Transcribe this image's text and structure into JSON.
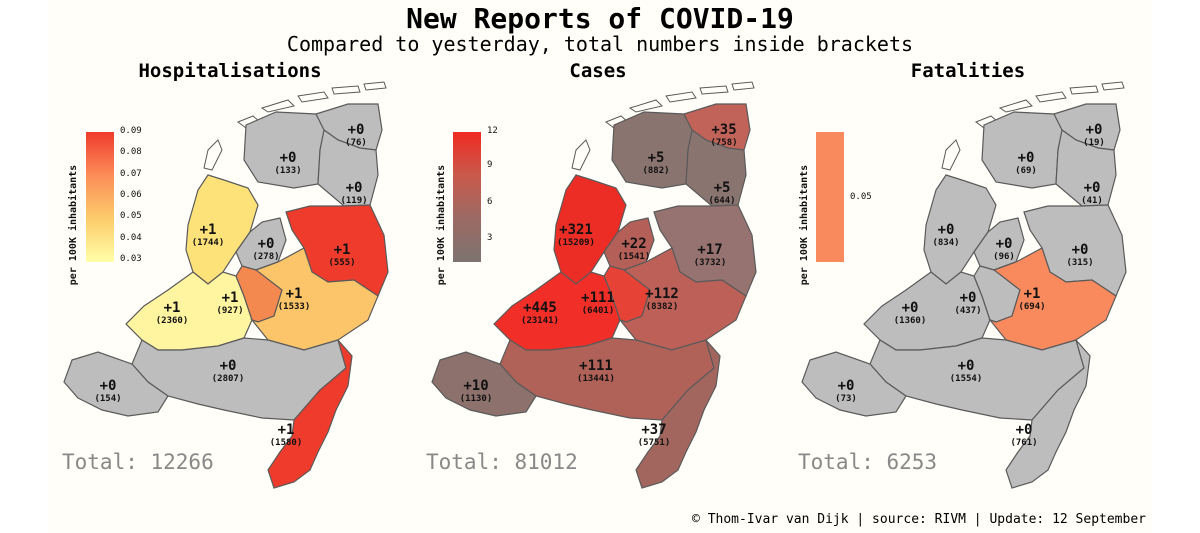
{
  "title": "New Reports of COVID-19",
  "subtitle": "Compared to yesterday, total numbers inside brackets",
  "footer": "© Thom-Ivar van Dijk | source: RIVM | Update: 12 September",
  "colorbar_label": "per 100K inhabitants",
  "colors": {
    "no_change": "#bdbdbd",
    "border": "#5a5a5a",
    "background": "#fffef8"
  },
  "panels": [
    {
      "title": "Hospitalisations",
      "total": "Total: 12266",
      "ticks": [
        "0.09",
        "0.08",
        "0.07",
        "0.06",
        "0.05",
        "0.04",
        "0.03"
      ],
      "colorbar_gradient": [
        "#ef3b2c",
        "#fc8d59",
        "#fdcc6b",
        "#ffffa8"
      ],
      "regions": {
        "groningen": {
          "new": "+0",
          "total": "(76)"
        },
        "friesland": {
          "new": "+0",
          "total": "(133)"
        },
        "drenthe": {
          "new": "+0",
          "total": "(119)"
        },
        "noord_holland": {
          "new": "+1",
          "total": "(1744)"
        },
        "flevoland": {
          "new": "+0",
          "total": "(278)"
        },
        "overijssel": {
          "new": "+1",
          "total": "(555)"
        },
        "zuid_holland": {
          "new": "+1",
          "total": "(2360)"
        },
        "utrecht": {
          "new": "+1",
          "total": "(927)"
        },
        "gelderland": {
          "new": "+1",
          "total": "(1533)"
        },
        "noord_brabant": {
          "new": "+0",
          "total": "(2807)"
        },
        "zeeland": {
          "new": "+0",
          "total": "(154)"
        },
        "limburg": {
          "new": "+1",
          "total": "(1580)"
        }
      }
    },
    {
      "title": "Cases",
      "total": "Total: 81012",
      "ticks": [
        "12",
        "9",
        "6",
        "3"
      ],
      "colorbar_gradient": [
        "#ef2b22",
        "#c95a4c",
        "#9c6a64",
        "#7d7370"
      ],
      "regions": {
        "groningen": {
          "new": "+35",
          "total": "(758)"
        },
        "friesland": {
          "new": "+5",
          "total": "(882)"
        },
        "drenthe": {
          "new": "+5",
          "total": "(644)"
        },
        "noord_holland": {
          "new": "+321",
          "total": "(15209)"
        },
        "flevoland": {
          "new": "+22",
          "total": "(1541)"
        },
        "overijssel": {
          "new": "+17",
          "total": "(3732)"
        },
        "zuid_holland": {
          "new": "+445",
          "total": "(23141)"
        },
        "utrecht": {
          "new": "+111",
          "total": "(6401)"
        },
        "gelderland": {
          "new": "+112",
          "total": "(8382)"
        },
        "noord_brabant": {
          "new": "+111",
          "total": "(13441)"
        },
        "zeeland": {
          "new": "+10",
          "total": "(1130)"
        },
        "limburg": {
          "new": "+37",
          "total": "(5751)"
        }
      }
    },
    {
      "title": "Fatalities",
      "total": "Total: 6253",
      "ticks": [
        "0.05"
      ],
      "colorbar_gradient": [
        "#f98a5e",
        "#f98a5e",
        "#f98a5e",
        "#f98a5e"
      ],
      "regions": {
        "groningen": {
          "new": "+0",
          "total": "(19)"
        },
        "friesland": {
          "new": "+0",
          "total": "(69)"
        },
        "drenthe": {
          "new": "+0",
          "total": "(41)"
        },
        "noord_holland": {
          "new": "+0",
          "total": "(834)"
        },
        "flevoland": {
          "new": "+0",
          "total": "(96)"
        },
        "overijssel": {
          "new": "+0",
          "total": "(315)"
        },
        "zuid_holland": {
          "new": "+0",
          "total": "(1360)"
        },
        "utrecht": {
          "new": "+0",
          "total": "(437)"
        },
        "gelderland": {
          "new": "+1",
          "total": "(694)"
        },
        "noord_brabant": {
          "new": "+0",
          "total": "(1554)"
        },
        "zeeland": {
          "new": "+0",
          "total": "(73)"
        },
        "limburg": {
          "new": "+0",
          "total": "(761)"
        }
      }
    }
  ],
  "region_fills": [
    {
      "groningen": "#bdbdbd",
      "friesland": "#bdbdbd",
      "drenthe": "#bdbdbd",
      "noord_holland": "#fde27a",
      "flevoland": "#bdbdbd",
      "overijssel": "#ef3b2c",
      "zuid_holland": "#fff4a0",
      "utrecht": "#f4894f",
      "gelderland": "#fcc56a",
      "noord_brabant": "#bdbdbd",
      "zeeland": "#bdbdbd",
      "limburg": "#ef3b2c"
    },
    {
      "groningen": "#c2635a",
      "friesland": "#8a7470",
      "drenthe": "#8a7470",
      "noord_holland": "#ec2d25",
      "flevoland": "#b46059",
      "overijssel": "#967370",
      "zuid_holland": "#f22e28",
      "utrecht": "#e64236",
      "gelderland": "#bd6057",
      "noord_brabant": "#b06258",
      "zeeland": "#8d716d",
      "limburg": "#a3665f"
    },
    {
      "groningen": "#bdbdbd",
      "friesland": "#bdbdbd",
      "drenthe": "#bdbdbd",
      "noord_holland": "#bdbdbd",
      "flevoland": "#bdbdbd",
      "overijssel": "#bdbdbd",
      "zuid_holland": "#bdbdbd",
      "utrecht": "#bdbdbd",
      "gelderland": "#f98a5e",
      "noord_brabant": "#bdbdbd",
      "zeeland": "#bdbdbd",
      "limburg": "#bdbdbd"
    }
  ]
}
